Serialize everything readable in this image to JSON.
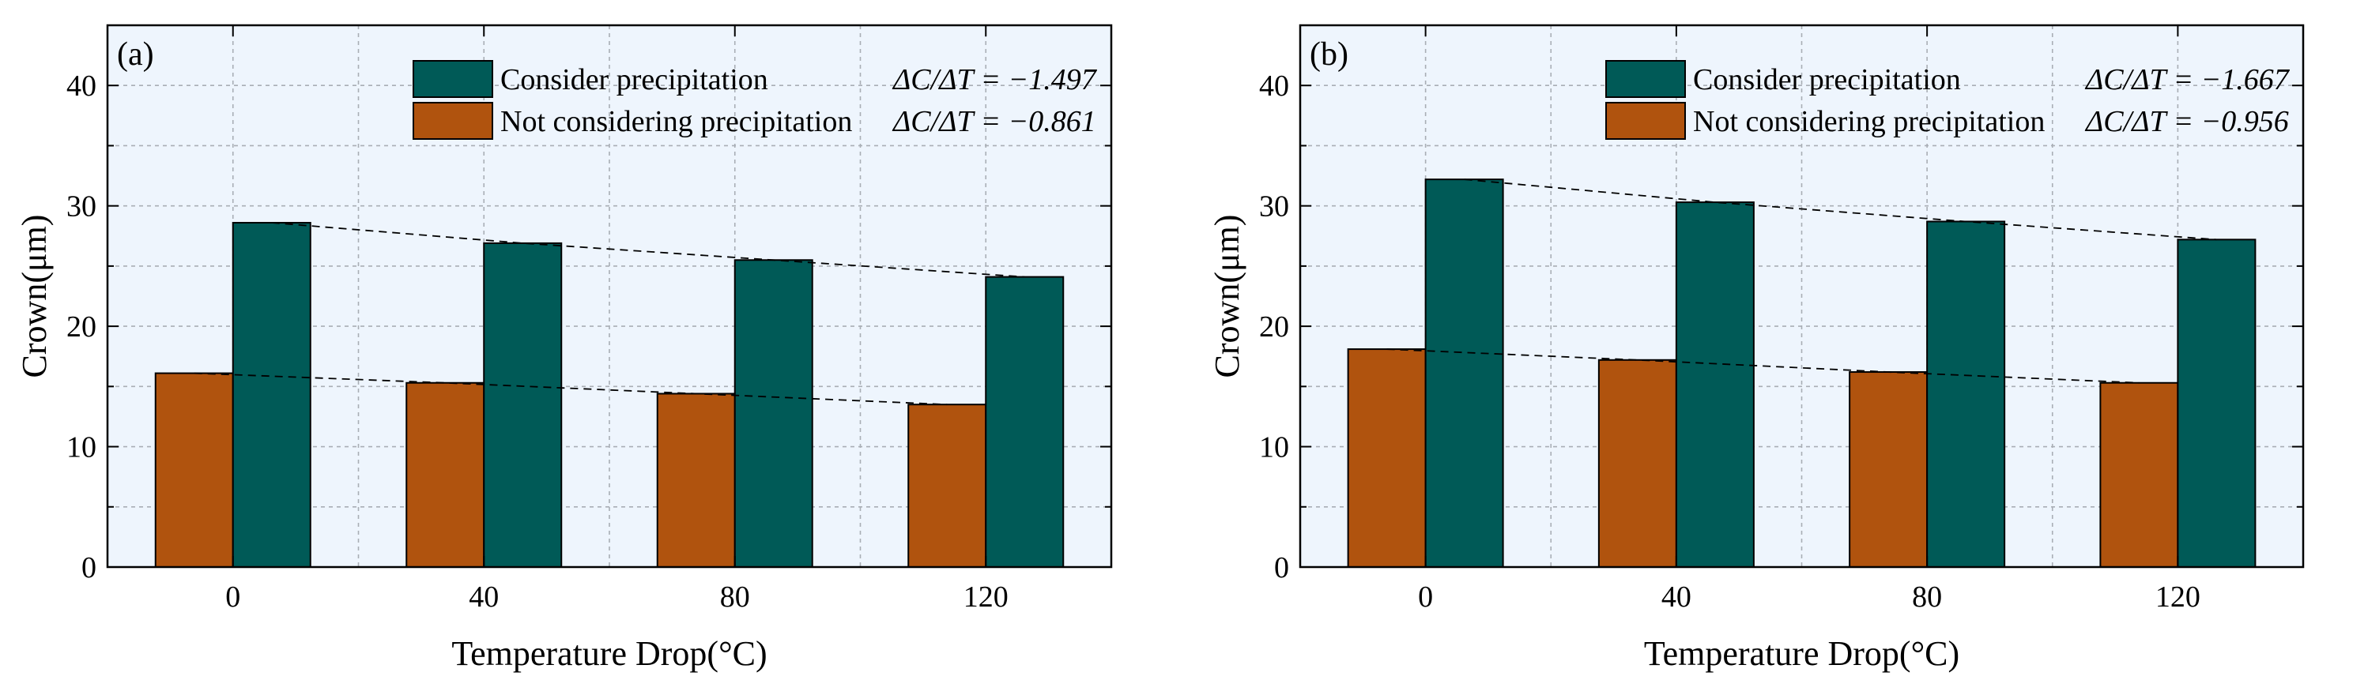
{
  "colors": {
    "precip": "#005a57",
    "no_precip": "#b0530e",
    "plot_bg": "#eef5fd",
    "grid": "#a9aeb5",
    "axis": "#000000"
  },
  "chart_data": [
    {
      "type": "bar",
      "panel_label": "(a)",
      "xlabel": "Temperature Drop(°C)",
      "ylabel": "Crown(μm)",
      "ylim": [
        0,
        45
      ],
      "yticks": [
        "0",
        "10",
        "20",
        "30",
        "40"
      ],
      "categories": [
        "0",
        "40",
        "80",
        "120"
      ],
      "series": [
        {
          "name": "Not considering precipitation",
          "values": [
            16.1,
            15.3,
            14.4,
            13.5
          ]
        },
        {
          "name": "Consider precipitation",
          "values": [
            28.6,
            26.9,
            25.5,
            24.1
          ]
        }
      ],
      "legend": [
        {
          "label": "Consider precipitation",
          "slope_label": "ΔC/ΔT = −1.497"
        },
        {
          "label": "Not considering precipitation",
          "slope_label": "ΔC/ΔT = −0.861"
        }
      ],
      "legend_position": "top-right",
      "grid": true,
      "trend_lines": true
    },
    {
      "type": "bar",
      "panel_label": "(b)",
      "xlabel": "Temperature Drop(°C)",
      "ylabel": "Crown(μm)",
      "ylim": [
        0,
        45
      ],
      "yticks": [
        "0",
        "10",
        "20",
        "30",
        "40"
      ],
      "categories": [
        "0",
        "40",
        "80",
        "120"
      ],
      "series": [
        {
          "name": "Not considering precipitation",
          "values": [
            18.1,
            17.2,
            16.2,
            15.3
          ]
        },
        {
          "name": "Consider precipitation",
          "values": [
            32.2,
            30.3,
            28.7,
            27.2
          ]
        }
      ],
      "legend": [
        {
          "label": "Consider precipitation",
          "slope_label": "ΔC/ΔT = −1.667"
        },
        {
          "label": "Not considering precipitation",
          "slope_label": "ΔC/ΔT = −0.956"
        }
      ],
      "legend_position": "top-right",
      "grid": true,
      "trend_lines": true
    }
  ]
}
